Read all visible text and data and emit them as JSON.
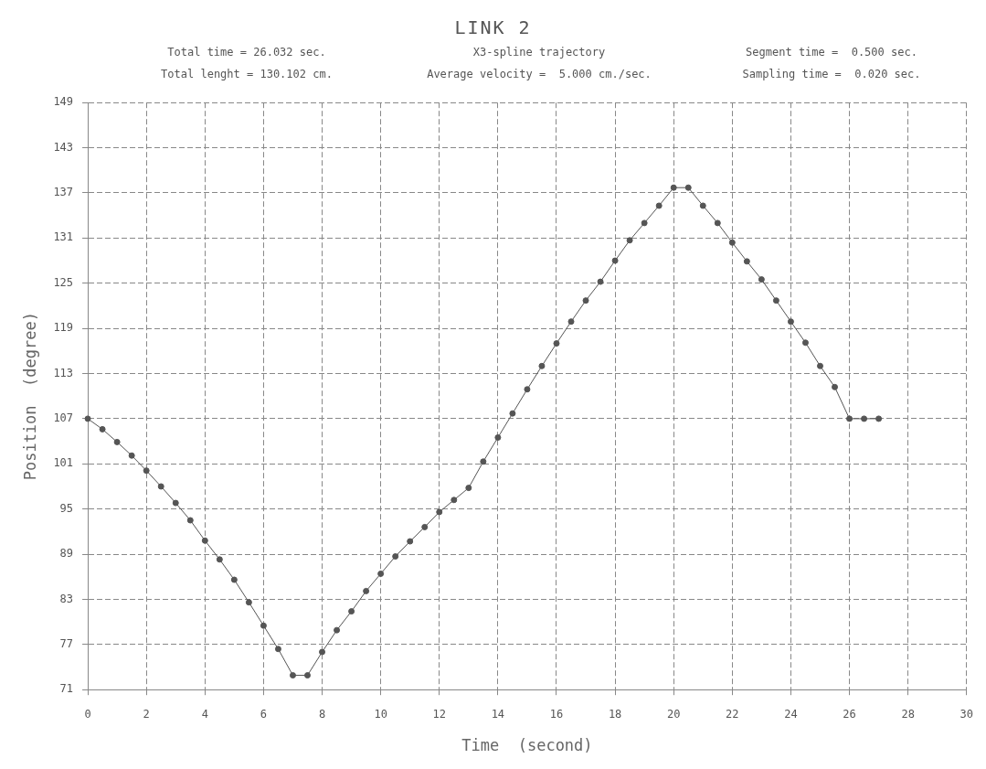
{
  "chart_data": {
    "type": "line",
    "title": "LINK 2",
    "annotations": [
      "Total time = 26.032 sec.",
      "X3-spline trajectory",
      "Segment time =  0.500 sec.",
      "Total lenght = 130.102 cm.",
      "Average velocity =  5.000 cm./sec.",
      "Sampling time =  0.020 sec."
    ],
    "xlabel": "Time  (second)",
    "ylabel": "Position  (degree)",
    "x": [
      0,
      0.5,
      1,
      1.5,
      2,
      2.5,
      3,
      3.5,
      4,
      4.5,
      5,
      5.5,
      6,
      6.5,
      7,
      7.5,
      8,
      8.5,
      9,
      9.5,
      10,
      10.5,
      11,
      11.5,
      12,
      12.5,
      13,
      13.5,
      14,
      14.5,
      15,
      15.5,
      16,
      16.5,
      17,
      17.5,
      18,
      18.5,
      19,
      19.5,
      20,
      20.5,
      21,
      21.5,
      22,
      22.5,
      23,
      23.5,
      24,
      24.5,
      25,
      25.5,
      26,
      26.5,
      27
    ],
    "series": [
      {
        "color": "#555555",
        "values": [
          107,
          105.6,
          103.9,
          102.1,
          100.1,
          98,
          95.8,
          93.5,
          90.8,
          88.3,
          85.6,
          82.6,
          79.5,
          76.4,
          72.9,
          72.9,
          76,
          78.9,
          81.4,
          84.1,
          86.4,
          88.7,
          90.7,
          92.6,
          94.6,
          96.2,
          97.8,
          101.3,
          104.5,
          107.7,
          110.9,
          114,
          117,
          119.9,
          122.7,
          125.2,
          128,
          130.7,
          133,
          135.3,
          137.7,
          137.7,
          135.3,
          133,
          130.4,
          127.9,
          125.5,
          122.7,
          119.9,
          117.1,
          114,
          111.2,
          107,
          107,
          107
        ]
      }
    ],
    "xlim": [
      0,
      30
    ],
    "xticks": [
      0,
      2,
      4,
      6,
      8,
      10,
      12,
      14,
      16,
      18,
      20,
      22,
      24,
      26,
      28,
      30
    ],
    "ylim": [
      71,
      149
    ],
    "yticks": [
      71,
      77,
      83,
      89,
      95,
      101,
      107,
      113,
      119,
      125,
      131,
      137,
      143,
      149
    ],
    "grid": true,
    "legend": false,
    "marker": "circle",
    "line_style": "solid"
  }
}
